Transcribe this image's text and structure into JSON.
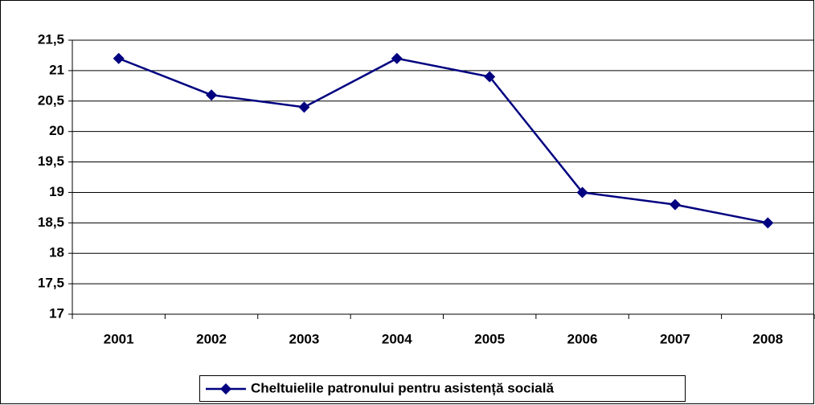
{
  "chart_data": {
    "type": "line",
    "categories": [
      "2001",
      "2002",
      "2003",
      "2004",
      "2005",
      "2006",
      "2007",
      "2008"
    ],
    "series": [
      {
        "name": "Cheltuielile patronului pentru asistență socială",
        "color": "#000080",
        "values": [
          21.2,
          20.6,
          20.4,
          21.2,
          20.9,
          19,
          18.8,
          18.5
        ]
      }
    ],
    "ylim": [
      17,
      21.5
    ],
    "yticks": [
      17,
      {
        "value": 17.5,
        "label": "17,5"
      },
      18,
      {
        "value": 18.5,
        "label": "18,5"
      },
      19,
      {
        "value": 19.5,
        "label": "19,5"
      },
      20,
      {
        "value": 20.5,
        "label": "20,5"
      },
      21,
      {
        "value": 21.5,
        "label": "21,5"
      }
    ],
    "grid": true,
    "legend": "bottom"
  }
}
